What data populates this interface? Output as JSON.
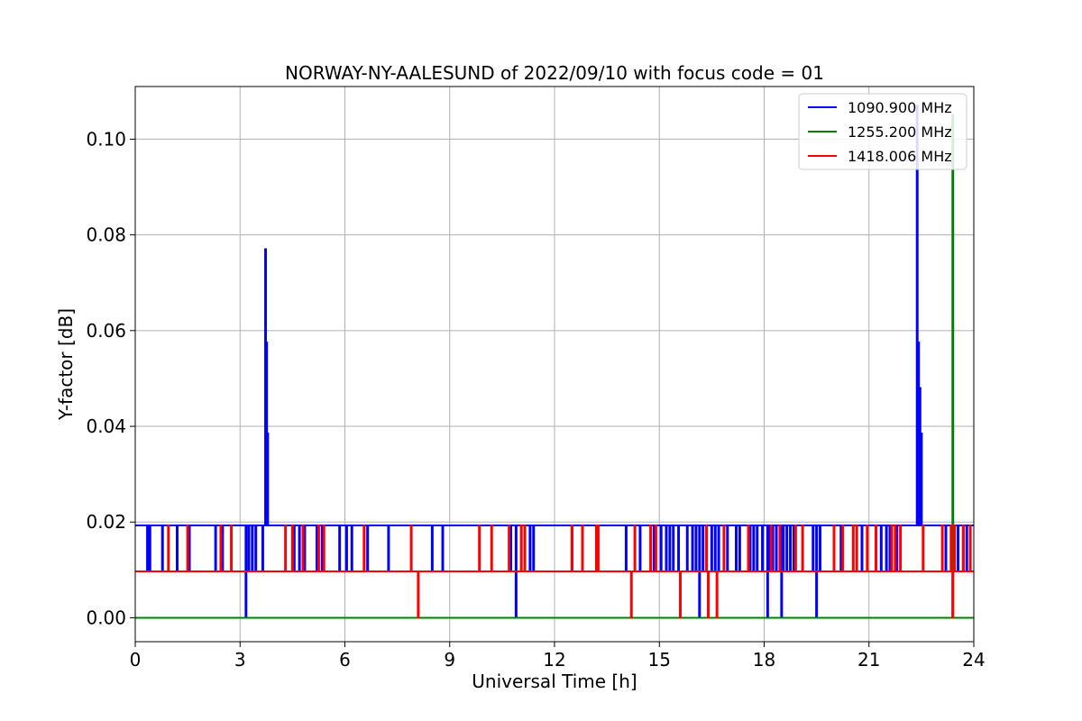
{
  "chart_data": {
    "type": "line",
    "title": "NORWAY-NY-AALESUND of 2022/09/10 with focus code = 01",
    "xlabel": "Universal Time [h]",
    "ylabel": "Y-factor [dB]",
    "xlim": [
      0,
      24
    ],
    "ylim": [
      -0.005,
      0.111
    ],
    "xticks": [
      0,
      3,
      6,
      9,
      12,
      15,
      18,
      21,
      24
    ],
    "xtick_labels": [
      "0",
      "3",
      "6",
      "9",
      "12",
      "15",
      "18",
      "21",
      "24"
    ],
    "yticks": [
      0.0,
      0.02,
      0.04,
      0.06,
      0.08,
      0.1
    ],
    "ytick_labels": [
      "0.00",
      "0.02",
      "0.04",
      "0.06",
      "0.08",
      "0.10"
    ],
    "grid": true,
    "legend_position": "top-right",
    "series": [
      {
        "name": "1090.900 MHz",
        "color": "#0000ff",
        "baseline": 0.0193,
        "dips_to_mid": [
          0.35,
          0.42,
          0.78,
          1.2,
          1.55,
          2.3,
          2.5,
          3.25,
          3.35,
          3.45,
          3.65,
          4.55,
          4.7,
          4.85,
          5.2,
          5.35,
          5.85,
          6.05,
          6.2,
          6.65,
          7.25,
          8.5,
          8.8,
          10.75,
          11.3,
          11.4,
          12.5,
          13.2,
          14.05,
          14.45,
          14.85,
          15.05,
          15.2,
          15.3,
          15.4,
          15.55,
          15.8,
          15.95,
          16.05,
          16.25,
          16.5,
          16.6,
          16.7,
          16.95,
          17.2,
          17.3,
          17.6,
          17.7,
          17.8,
          17.95,
          18.15,
          18.25,
          18.35,
          18.55,
          18.65,
          18.75,
          18.85,
          19.4,
          19.6,
          20.2,
          20.8,
          21.35,
          21.5,
          21.6,
          21.8,
          23.2,
          23.55,
          23.7,
          23.8
        ],
        "dips_to_zero": [
          3.17,
          10.9,
          16.15,
          18.1,
          18.5,
          19.5
        ],
        "spikes": [
          {
            "x": 3.73,
            "y": 0.077
          },
          {
            "x": 3.76,
            "y": 0.0575
          },
          {
            "x": 3.79,
            "y": 0.0385
          },
          {
            "x": 22.38,
            "y": 0.107
          },
          {
            "x": 22.42,
            "y": 0.0575
          },
          {
            "x": 22.46,
            "y": 0.048
          },
          {
            "x": 22.5,
            "y": 0.0385
          }
        ]
      },
      {
        "name": "1255.200 MHz",
        "color": "#008000",
        "baseline": 0.0,
        "spikes": [
          {
            "x": 23.4,
            "y": 0.105
          }
        ]
      },
      {
        "name": "1418.006 MHz",
        "color": "#ff0000",
        "baseline": 0.0097,
        "ups_to_top": [
          0.95,
          1.5,
          2.45,
          2.75,
          4.3,
          4.5,
          4.8,
          5.25,
          5.4,
          6.55,
          7.9,
          9.85,
          10.2,
          10.7,
          11.05,
          11.15,
          12.5,
          12.8,
          13.2,
          13.25,
          14.3,
          14.75,
          14.9,
          16.35,
          16.85,
          17.55,
          18.2,
          18.45,
          18.9,
          19.1,
          20.0,
          20.25,
          20.55,
          20.65,
          20.95,
          21.2,
          21.65,
          21.75,
          21.9,
          22.55,
          23.1,
          23.35,
          23.45,
          23.7,
          23.9
        ],
        "dips_to_zero": [
          8.1,
          14.2,
          15.6,
          16.4,
          16.65,
          23.4
        ]
      }
    ]
  }
}
